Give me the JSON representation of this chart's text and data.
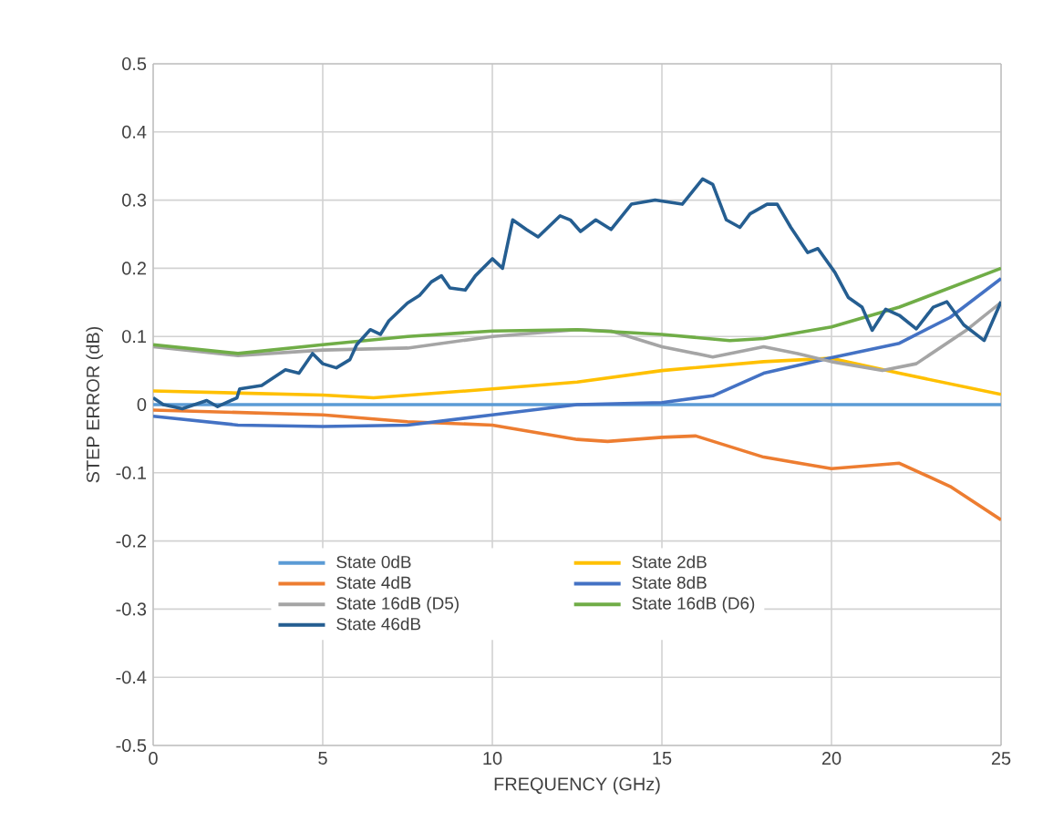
{
  "chart_data": {
    "type": "line",
    "xlabel": "FREQUENCY (GHz)",
    "ylabel": "STEP ERROR (dB)",
    "xlim": [
      0,
      25
    ],
    "xticks": [
      0,
      5,
      10,
      15,
      20,
      25
    ],
    "ylim": [
      -0.5,
      0.5
    ],
    "yticks": [
      -0.5,
      -0.4,
      -0.3,
      -0.2,
      -0.1,
      0,
      0.1,
      0.2,
      0.3,
      0.4,
      0.5
    ],
    "grid": true,
    "legend": "bottom",
    "marker": "none",
    "line_style": "solid",
    "series": [
      {
        "name": "State 0dB",
        "color": "#5b9bd5",
        "x": [
          0,
          25
        ],
        "values": [
          0,
          0
        ]
      },
      {
        "name": "State 2dB",
        "color": "#ffc000",
        "x": [
          0,
          5,
          6.5,
          10,
          12.5,
          15,
          18,
          20,
          22,
          25
        ],
        "values": [
          0.02,
          0.014,
          0.01,
          0.023,
          0.033,
          0.05,
          0.063,
          0.068,
          0.046,
          0.015
        ]
      },
      {
        "name": "State 4dB",
        "color": "#ed7d31",
        "x": [
          0,
          5,
          7.5,
          10,
          12.5,
          13.4,
          15,
          16,
          18,
          20,
          22,
          23.5,
          25
        ],
        "values": [
          -0.008,
          -0.015,
          -0.025,
          -0.03,
          -0.051,
          -0.054,
          -0.048,
          -0.046,
          -0.077,
          -0.094,
          -0.086,
          -0.12,
          -0.169
        ]
      },
      {
        "name": "State 8dB",
        "color": "#4472c4",
        "x": [
          0,
          2.5,
          5,
          7.5,
          10,
          12.5,
          15,
          16.5,
          18,
          20,
          22,
          23.5,
          25
        ],
        "values": [
          -0.017,
          -0.03,
          -0.032,
          -0.03,
          -0.015,
          0,
          0.003,
          0.013,
          0.046,
          0.069,
          0.09,
          0.128,
          0.185
        ]
      },
      {
        "name": "State 16dB (D5)",
        "color": "#a5a5a5",
        "x": [
          0,
          2.5,
          5,
          7.5,
          10,
          12.5,
          13.5,
          15,
          16.5,
          18,
          19,
          20,
          21.5,
          22.5,
          24,
          25
        ],
        "values": [
          0.085,
          0.072,
          0.08,
          0.083,
          0.1,
          0.11,
          0.108,
          0.085,
          0.07,
          0.085,
          0.075,
          0.063,
          0.05,
          0.06,
          0.11,
          0.15
        ]
      },
      {
        "name": "State 16dB (D6)",
        "color": "#70ad47",
        "x": [
          0,
          2.5,
          5,
          7.5,
          10,
          12.5,
          15,
          17,
          18,
          20,
          22,
          25
        ],
        "values": [
          0.088,
          0.075,
          0.088,
          0.1,
          0.108,
          0.11,
          0.103,
          0.094,
          0.097,
          0.114,
          0.143,
          0.2
        ]
      },
      {
        "name": "State 46dB",
        "color": "#255e91",
        "x": [
          0,
          0.3,
          0.86,
          1.58,
          1.9,
          2.47,
          2.55,
          3.2,
          3.9,
          4.3,
          4.7,
          5,
          5.4,
          5.8,
          6,
          6.4,
          6.7,
          6.95,
          7.5,
          7.85,
          8.2,
          8.5,
          8.75,
          9.2,
          9.5,
          10,
          10.3,
          10.6,
          11,
          11.35,
          12,
          12.3,
          12.6,
          13.05,
          13.5,
          14.1,
          14.8,
          15.6,
          16.2,
          16.5,
          16.9,
          17.3,
          17.6,
          18.1,
          18.4,
          18.8,
          19.3,
          19.6,
          20.1,
          20.5,
          20.9,
          21.2,
          21.6,
          22,
          22.5,
          23,
          23.4,
          23.9,
          24.5,
          25
        ],
        "values": [
          0.01,
          0,
          -0.006,
          0.006,
          -0.003,
          0.01,
          0.023,
          0.028,
          0.051,
          0.046,
          0.075,
          0.06,
          0.054,
          0.066,
          0.088,
          0.11,
          0.103,
          0.123,
          0.149,
          0.16,
          0.18,
          0.189,
          0.171,
          0.168,
          0.189,
          0.214,
          0.2,
          0.271,
          0.257,
          0.246,
          0.277,
          0.271,
          0.254,
          0.271,
          0.257,
          0.294,
          0.3,
          0.294,
          0.331,
          0.323,
          0.271,
          0.26,
          0.28,
          0.294,
          0.294,
          0.26,
          0.223,
          0.229,
          0.194,
          0.157,
          0.143,
          0.109,
          0.14,
          0.131,
          0.111,
          0.143,
          0.151,
          0.117,
          0.094,
          0.151
        ]
      }
    ]
  }
}
